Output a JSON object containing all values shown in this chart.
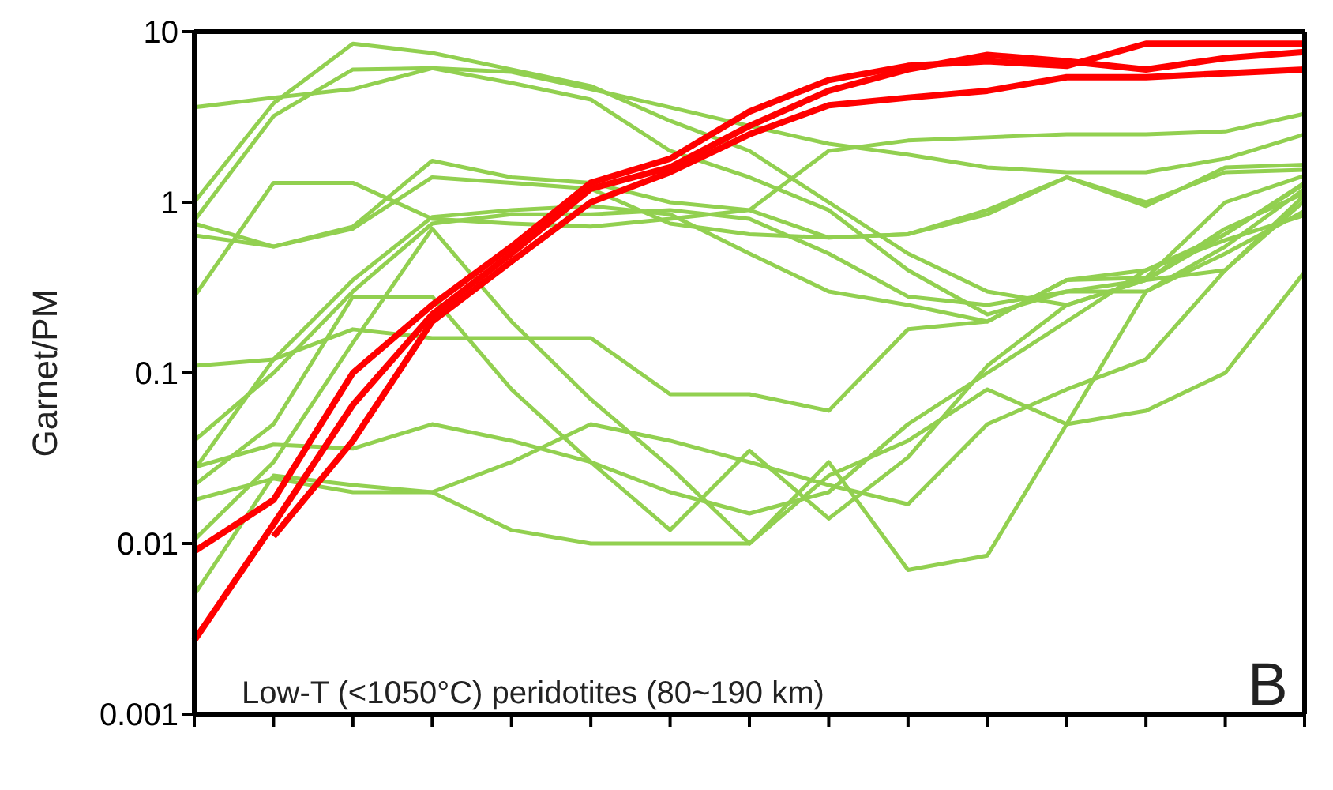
{
  "chart_data": {
    "type": "line",
    "ylabel": "Garnet/PM",
    "categories": [
      null,
      null,
      null,
      null,
      null,
      null,
      null,
      null,
      null,
      null,
      null,
      null,
      null,
      null,
      null
    ],
    "log": true,
    "ylim": [
      0.001,
      10
    ],
    "yticks": [
      0.001,
      0.01,
      0.1,
      1,
      10
    ],
    "tick_labels": "y",
    "marker": "none",
    "line_style": "solid",
    "annotations": [
      "Low-T (<1050°C) peridotites (80~190 km)",
      "B"
    ],
    "series": [
      {
        "color": "#92d050",
        "values": [
          3.6,
          4.1,
          4.6,
          6.1,
          5.8,
          4.6,
          3.6,
          2.8,
          2.2,
          1.9,
          1.6,
          1.5,
          1.5,
          1.8,
          2.5
        ]
      },
      {
        "color": "#92d050",
        "values": [
          1.0,
          3.8,
          8.5,
          7.5,
          6.0,
          4.8,
          3.0,
          2.0,
          1.0,
          0.5,
          0.3,
          0.25,
          0.35,
          0.4,
          1.1
        ]
      },
      {
        "color": "#92d050",
        "values": [
          0.78,
          3.2,
          6.0,
          6.1,
          5.0,
          4.0,
          2.0,
          1.4,
          0.9,
          0.4,
          0.22,
          0.3,
          0.35,
          0.65,
          1.3
        ]
      },
      {
        "color": "#92d050",
        "values": [
          0.75,
          0.55,
          0.72,
          1.75,
          1.4,
          1.3,
          1.0,
          0.9,
          0.62,
          0.65,
          0.85,
          1.4,
          0.95,
          1.6,
          1.66
        ]
      },
      {
        "color": "#92d050",
        "values": [
          0.64,
          0.55,
          0.7,
          1.4,
          1.3,
          1.2,
          0.75,
          0.65,
          0.62,
          0.65,
          0.9,
          1.4,
          1.0,
          1.5,
          1.55
        ]
      },
      {
        "color": "#92d050",
        "values": [
          0.28,
          1.3,
          1.3,
          0.8,
          0.75,
          0.72,
          0.8,
          0.9,
          2.0,
          2.3,
          2.4,
          2.5,
          2.5,
          2.6,
          3.3
        ]
      },
      {
        "color": "#92d050",
        "values": [
          0.11,
          0.12,
          0.18,
          0.16,
          0.16,
          0.16,
          0.075,
          0.075,
          0.06,
          0.18,
          0.2,
          0.35,
          0.36,
          1.0,
          1.43
        ]
      },
      {
        "color": "#92d050",
        "values": [
          0.04,
          0.1,
          0.3,
          0.75,
          0.85,
          0.85,
          0.9,
          0.8,
          0.5,
          0.28,
          0.25,
          0.3,
          0.3,
          0.55,
          1.2
        ]
      },
      {
        "color": "#92d050",
        "values": [
          0.027,
          0.12,
          0.35,
          0.82,
          0.9,
          0.95,
          0.85,
          0.5,
          0.3,
          0.25,
          0.2,
          0.35,
          0.4,
          0.65,
          1.28
        ]
      },
      {
        "color": "#92d050",
        "values": [
          0.022,
          0.05,
          0.28,
          0.28,
          0.08,
          0.03,
          0.012,
          0.035,
          0.014,
          0.032,
          0.11,
          0.25,
          0.35,
          0.7,
          1.13
        ]
      },
      {
        "color": "#92d050",
        "values": [
          0.018,
          0.024,
          0.02,
          0.02,
          0.03,
          0.05,
          0.04,
          0.03,
          0.022,
          0.017,
          0.05,
          0.08,
          0.12,
          0.4,
          1.02
        ]
      },
      {
        "color": "#92d050",
        "values": [
          0.0105,
          0.03,
          0.15,
          0.7,
          0.2,
          0.07,
          0.028,
          0.01,
          0.03,
          0.007,
          0.0085,
          0.05,
          0.06,
          0.1,
          0.39
        ]
      },
      {
        "color": "#92d050",
        "values": [
          0.005,
          0.025,
          0.022,
          0.02,
          0.012,
          0.01,
          0.01,
          0.01,
          0.025,
          0.04,
          0.08,
          0.05,
          0.3,
          0.5,
          0.89
        ]
      },
      {
        "color": "#92d050",
        "values": [
          0.028,
          0.038,
          0.036,
          0.05,
          0.04,
          0.03,
          0.02,
          0.015,
          0.02,
          0.05,
          0.1,
          0.2,
          0.4,
          0.6,
          0.84
        ]
      },
      {
        "color": "#ff0000",
        "values": [
          0.009,
          0.018,
          0.1,
          0.25,
          0.55,
          1.3,
          1.8,
          3.4,
          5.2,
          6.3,
          6.7,
          6.3,
          8.5,
          8.5,
          8.5
        ]
      },
      {
        "color": "#ff0000",
        "values": [
          0.0027,
          0.013,
          0.065,
          0.22,
          0.5,
          1.2,
          1.6,
          2.8,
          4.5,
          6.0,
          7.3,
          6.7,
          6.0,
          7.0,
          7.6
        ]
      },
      {
        "color": "#ff0000",
        "values": [
          null,
          0.011,
          0.04,
          0.2,
          0.45,
          1.0,
          1.5,
          2.5,
          3.7,
          4.1,
          4.5,
          5.4,
          5.4,
          5.7,
          6.0
        ]
      }
    ]
  }
}
